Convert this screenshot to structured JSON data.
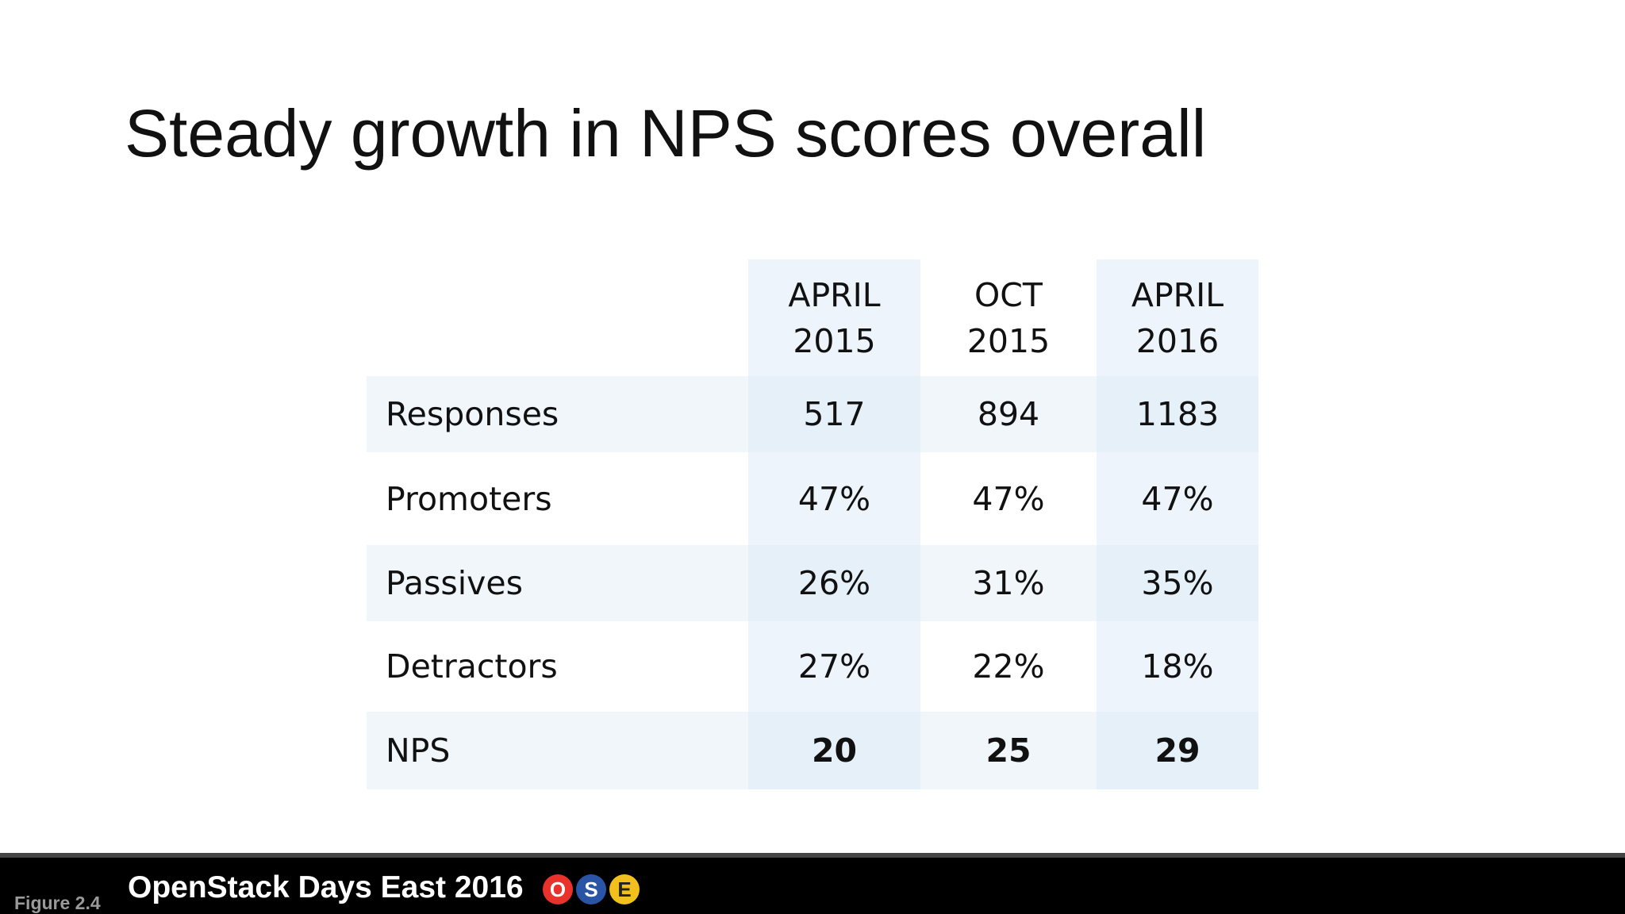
{
  "slide": {
    "title": "Steady growth in NPS scores overall"
  },
  "chart_data": {
    "type": "table",
    "columns": [
      {
        "line1": "APRIL",
        "line2": "2015"
      },
      {
        "line1": "OCT",
        "line2": "2015"
      },
      {
        "line1": "APRIL",
        "line2": "2016"
      }
    ],
    "rows": [
      {
        "label": "Responses",
        "values": [
          "517",
          "894",
          "1183"
        ]
      },
      {
        "label": "Promoters",
        "values": [
          "47%",
          "47%",
          "47%"
        ]
      },
      {
        "label": "Passives",
        "values": [
          "26%",
          "31%",
          "35%"
        ]
      },
      {
        "label": "Detractors",
        "values": [
          "27%",
          "22%",
          "18%"
        ]
      },
      {
        "label": "NPS",
        "values": [
          "20",
          "25",
          "29"
        ]
      }
    ]
  },
  "footer": {
    "figure_label": "Figure 2.4",
    "event_title": "OpenStack Days East 2016",
    "badges": [
      {
        "letter": "O",
        "color": "#e8322b"
      },
      {
        "letter": "S",
        "color": "#2a55a6"
      },
      {
        "letter": "E",
        "color": "#f2c01c"
      }
    ]
  }
}
